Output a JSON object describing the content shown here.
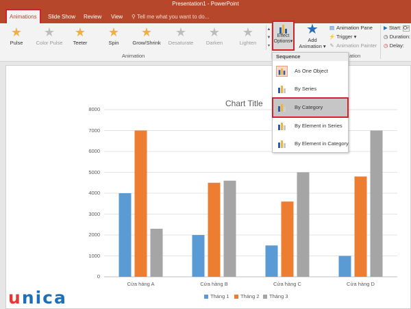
{
  "window": {
    "title": "Presentation1 - PowerPoint"
  },
  "tabs": [
    {
      "label": "Animations",
      "active": true
    },
    {
      "label": "Slide Show"
    },
    {
      "label": "Review"
    },
    {
      "label": "View"
    }
  ],
  "tell_me": {
    "text": "Tell me what you want to do..."
  },
  "ribbon": {
    "gallery": [
      {
        "label": "Pulse",
        "icon": "pulse-star-icon",
        "color": "#f0b23c"
      },
      {
        "label": "Color Pulse",
        "icon": "color-pulse-star-icon",
        "color": "#bdbdbd",
        "disabled": true
      },
      {
        "label": "Teeter",
        "icon": "teeter-star-icon",
        "color": "#f0b23c"
      },
      {
        "label": "Spin",
        "icon": "spin-star-icon",
        "color": "#f0b23c"
      },
      {
        "label": "Grow/Shrink",
        "icon": "grow-shrink-star-icon",
        "color": "#f0b23c"
      },
      {
        "label": "Desaturate",
        "icon": "desaturate-star-icon",
        "color": "#bdbdbd",
        "disabled": true
      },
      {
        "label": "Darken",
        "icon": "darken-star-icon",
        "color": "#bdbdbd",
        "disabled": true
      },
      {
        "label": "Lighten",
        "icon": "lighten-star-icon",
        "color": "#bdbdbd",
        "disabled": true
      }
    ],
    "group_animation": "Animation",
    "effect_options": {
      "line1": "Effect",
      "line2": "Options"
    },
    "add_animation": {
      "line1": "Add",
      "line2": "Animation"
    },
    "advanced": [
      {
        "label": "Animation Pane"
      },
      {
        "label": "Trigger"
      },
      {
        "label": "Animation Painter",
        "disabled": true
      }
    ],
    "advanced_group_tail": "ation",
    "timing": [
      {
        "label": "Start:",
        "value": "On"
      },
      {
        "label": "Duration:",
        "value": ""
      },
      {
        "label": "Delay:",
        "value": ""
      }
    ]
  },
  "dropdown": {
    "header": "Sequence",
    "items": [
      {
        "label": "As One Object"
      },
      {
        "label": "By Series"
      },
      {
        "label": "By Category",
        "selected": true
      },
      {
        "label": "By Element in Series"
      },
      {
        "label": "By Element in Category"
      }
    ]
  },
  "logo": {
    "text_u": "u",
    "text_rest": "nica"
  },
  "colors": {
    "series1": "#5b9bd5",
    "series2": "#ed7d31",
    "series3": "#a5a5a5",
    "accent": "#b7472a",
    "highlight": "#d5202c"
  },
  "chart_data": {
    "type": "bar",
    "title": "Chart Title",
    "categories": [
      "Cửa hàng A",
      "Cửa hàng B",
      "Cửa hàng C",
      "Cửa hàng D"
    ],
    "series": [
      {
        "name": "Tháng 1",
        "values": [
          4000,
          2000,
          1500,
          1000
        ]
      },
      {
        "name": "Tháng 2",
        "values": [
          7000,
          4500,
          3600,
          4800
        ]
      },
      {
        "name": "Tháng 3",
        "values": [
          2300,
          4600,
          5000,
          7000
        ]
      }
    ],
    "yticks": [
      0,
      1000,
      2000,
      3000,
      4000,
      5000,
      6000,
      7000,
      8000
    ],
    "ylim": [
      0,
      8000
    ],
    "grid": true,
    "legend": "bottom"
  }
}
